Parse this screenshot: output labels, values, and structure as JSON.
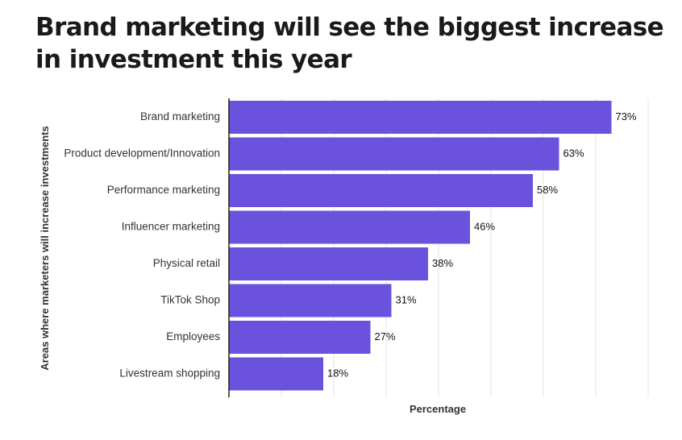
{
  "title": "Brand marketing will see the biggest increase in investment this year",
  "colors": {
    "bar": "#6b52dc",
    "grid": "#e6e6e6",
    "axis": "#222222"
  },
  "chart_data": {
    "type": "bar",
    "orientation": "horizontal",
    "title": "Brand marketing will see the biggest increase in investment this year",
    "xlabel": "Percentage",
    "ylabel": "Areas where marketers will increase investments",
    "categories": [
      "Brand marketing",
      "Product development/Innovation",
      "Performance marketing",
      "Influencer marketing",
      "Physical retail",
      "TikTok Shop",
      "Employees",
      "Livestream shopping"
    ],
    "values": [
      73,
      63,
      58,
      46,
      38,
      31,
      27,
      18
    ],
    "value_labels": [
      "73%",
      "63%",
      "58%",
      "46%",
      "38%",
      "31%",
      "27%",
      "18%"
    ],
    "xlim": [
      0,
      80
    ],
    "grid": true,
    "legend": "none"
  }
}
